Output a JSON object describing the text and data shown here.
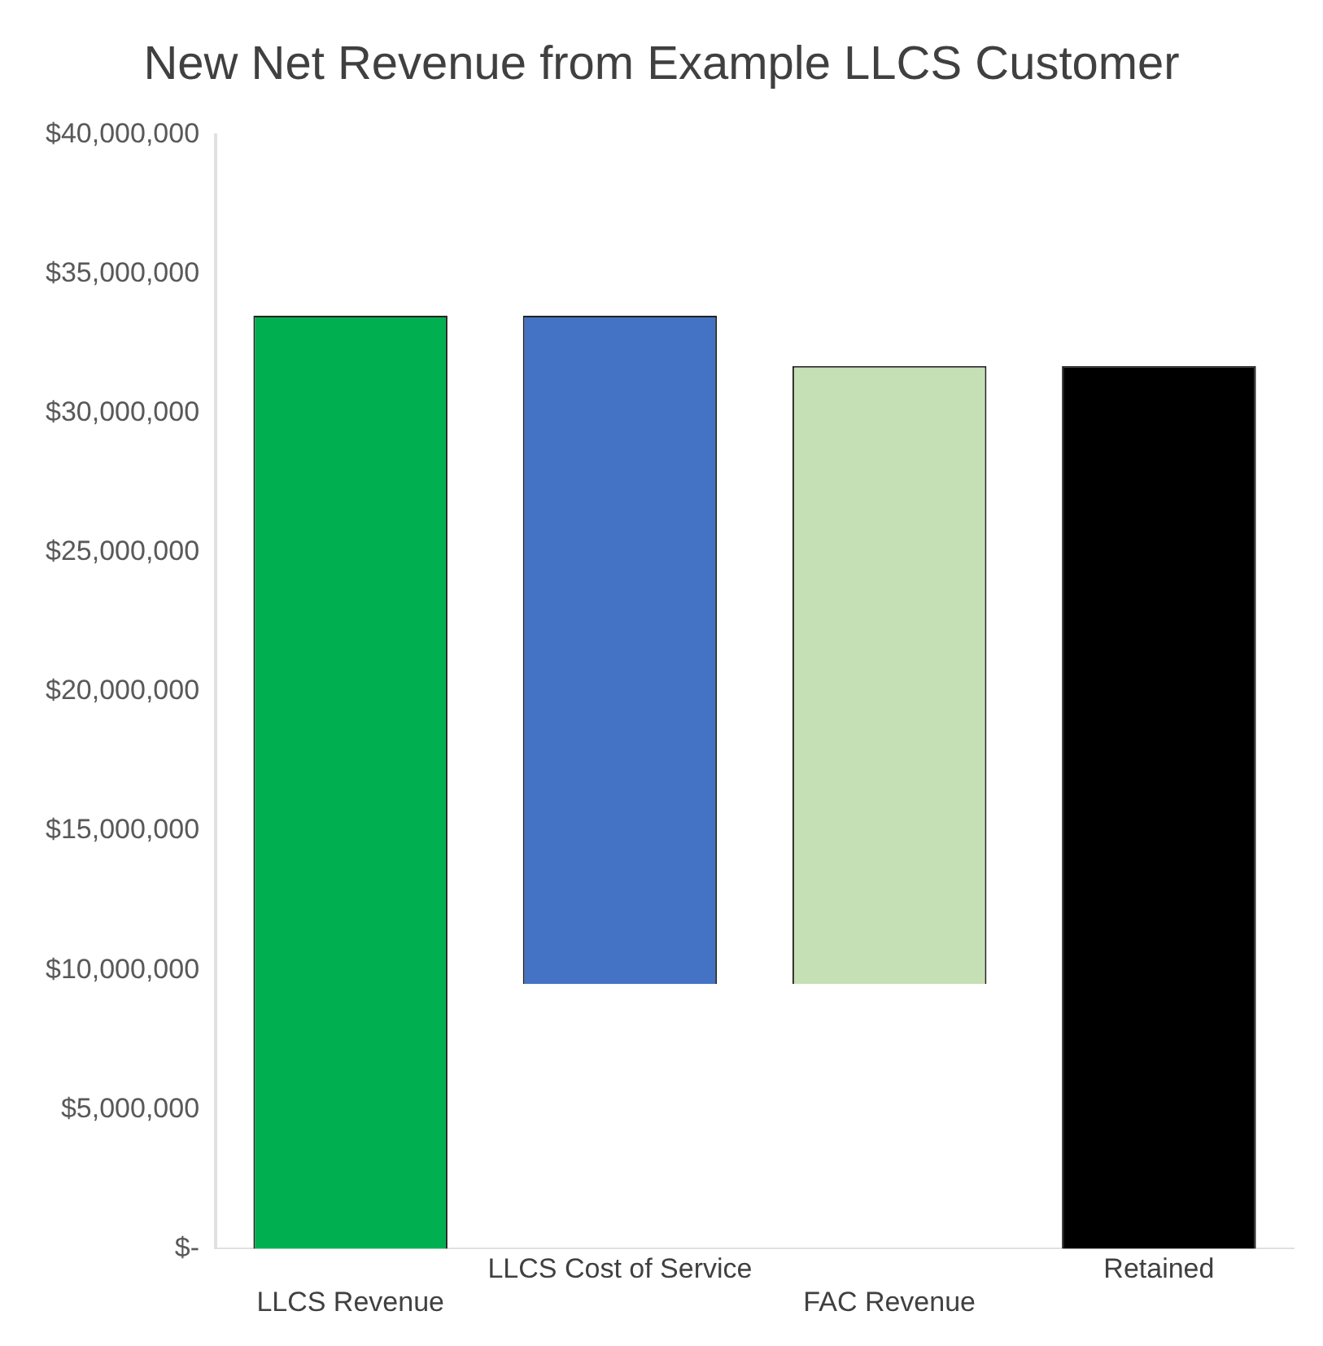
{
  "chart_data": {
    "type": "bar",
    "title": "New Net Revenue from Example LLCS Customer",
    "categories": [
      "LLCS Revenue",
      "LLCS Cost of Service",
      "FAC Revenue",
      "Retained"
    ],
    "values": [
      33500000,
      -24000000,
      22200000,
      31700000
    ],
    "base": [
      0,
      33500000,
      9500000,
      0
    ],
    "colors": [
      "#00b050",
      "#4472c4",
      "#c5e0b4",
      "#000000"
    ],
    "ylim": [
      0,
      40000000
    ],
    "yticks": [
      {
        "value": 0,
        "label": "$-"
      },
      {
        "value": 5000000,
        "label": "$5,000,000"
      },
      {
        "value": 10000000,
        "label": "$10,000,000"
      },
      {
        "value": 15000000,
        "label": "$15,000,000"
      },
      {
        "value": 20000000,
        "label": "$20,000,000"
      },
      {
        "value": 25000000,
        "label": "$25,000,000"
      },
      {
        "value": 30000000,
        "label": "$30,000,000"
      },
      {
        "value": 35000000,
        "label": "$35,000,000"
      },
      {
        "value": 40000000,
        "label": "$40,000,000"
      }
    ],
    "grid": false,
    "legend": false
  }
}
